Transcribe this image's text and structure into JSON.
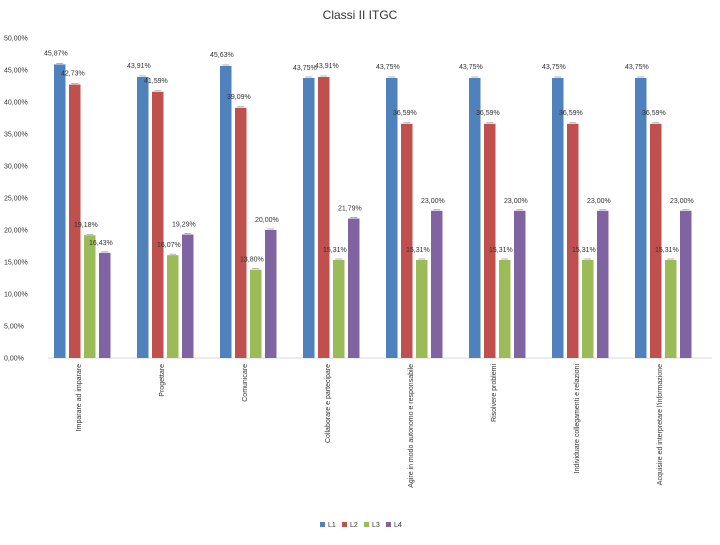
{
  "chart_data": {
    "type": "bar",
    "title": "Classi II ITGC",
    "xlabel": "",
    "ylabel": "",
    "ylim": [
      0,
      50
    ],
    "yticks": [
      "0,00%",
      "5,00%",
      "10,00%",
      "15,00%",
      "20,00%",
      "25,00%",
      "30,00%",
      "35,00%",
      "40,00%",
      "45,00%",
      "50,00%"
    ],
    "grid": false,
    "legend_position": "bottom",
    "categories": [
      "Imparare ad imparare",
      "Progettare",
      "Comunicare",
      "Collaborare e partecipare",
      "Agire in modo autonomo e responsabile",
      "Risolvere problemi",
      "Individuare collegamenti e relazioni",
      "Acquisire ed interpretare l'informazione"
    ],
    "series": [
      {
        "name": "L1",
        "color": "#4F81BD",
        "values": [
          45.87,
          43.91,
          45.63,
          43.75,
          43.75,
          43.75,
          43.75,
          43.75
        ],
        "labels": [
          "45,87%",
          "43,91%",
          "45,63%",
          "43,75%",
          "43,75%",
          "43,75%",
          "43,75%",
          "43,75%"
        ]
      },
      {
        "name": "L2",
        "color": "#C0504D",
        "values": [
          42.73,
          41.59,
          39.09,
          43.91,
          36.59,
          36.59,
          36.59,
          36.59
        ],
        "labels": [
          "42,73%",
          "41,59%",
          "39,09%",
          "43,91%",
          "36,59%",
          "36,59%",
          "36,59%",
          "36,59%"
        ]
      },
      {
        "name": "L3",
        "color": "#9BBB59",
        "values": [
          19.18,
          16.07,
          13.8,
          15.31,
          15.31,
          15.31,
          15.31,
          15.31
        ],
        "labels": [
          "19,18%",
          "16,07%",
          "13,80%",
          "15,31%",
          "15,31%",
          "15,31%",
          "15,31%",
          "15,31%"
        ]
      },
      {
        "name": "L4",
        "color": "#8064A2",
        "values": [
          16.43,
          19.29,
          20.0,
          21.79,
          23.0,
          23.0,
          23.0,
          23.0
        ],
        "labels": [
          "16,43%",
          "19,29%",
          "20,00%",
          "21,79%",
          "23,00%",
          "23,00%",
          "23,00%",
          "23,00%"
        ]
      }
    ]
  }
}
